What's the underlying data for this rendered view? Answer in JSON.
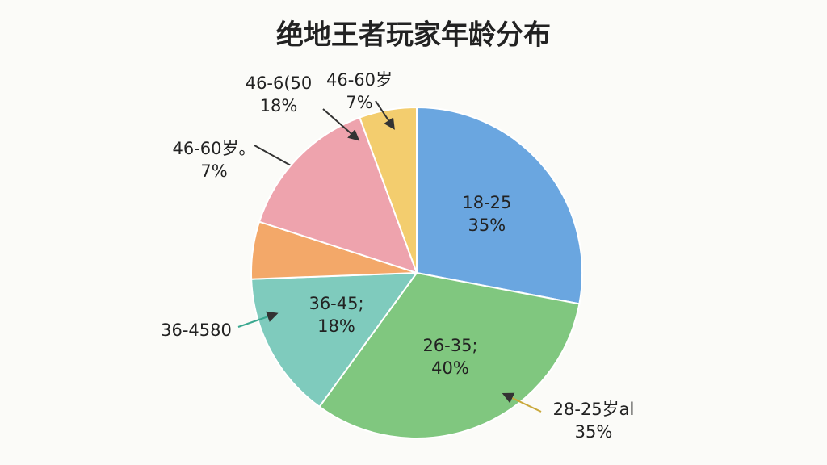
{
  "chart_data": {
    "type": "pie",
    "title": "绝地王者玩家年龄分布",
    "categories": [
      "18-25",
      "26-35;",
      "36-45;",
      "46-60岁。",
      "46-6(50",
      "46-60岁"
    ],
    "values": [
      35,
      40,
      18,
      7,
      18,
      7
    ],
    "value_labels": [
      "35%",
      "40%",
      "18%",
      "7%",
      "18%",
      "7%"
    ],
    "colors": [
      "#6aa6e0",
      "#80c77f",
      "#7fcbbd",
      "#f3a869",
      "#eea3ad",
      "#f3cd6e"
    ],
    "annotations": [
      {
        "text": "28-25岁al",
        "note": "35%"
      },
      {
        "text": "36-4580"
      }
    ]
  }
}
